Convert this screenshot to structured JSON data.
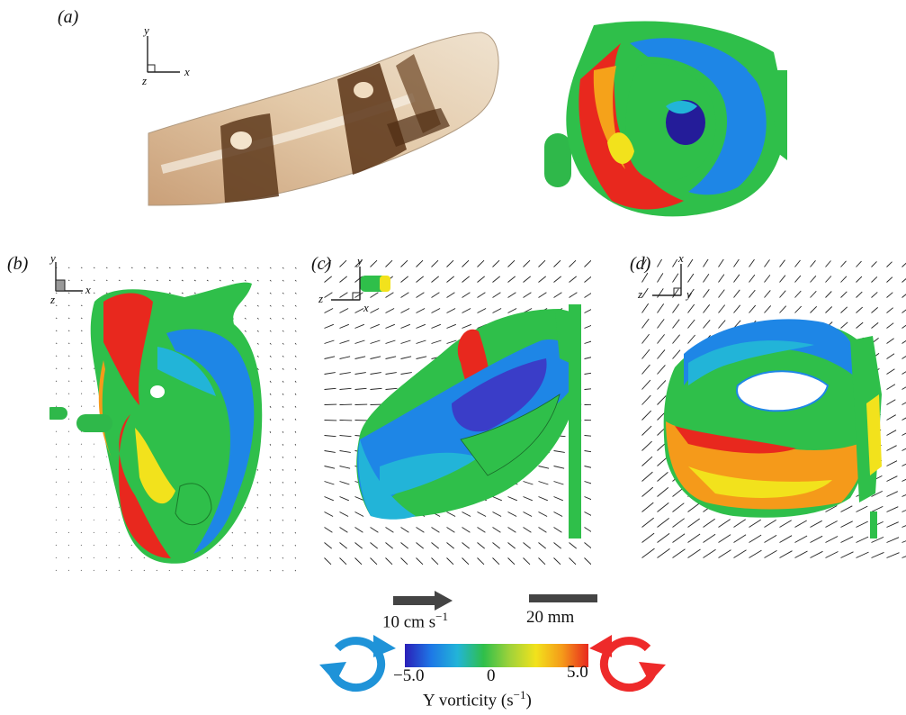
{
  "panels": {
    "a": {
      "label": "(a)",
      "axes": {
        "up": "y",
        "right": "x",
        "out": "z"
      }
    },
    "b": {
      "label": "(b)",
      "axes": {
        "up": "y",
        "right": "x",
        "out": "z"
      }
    },
    "c": {
      "label": "(c)",
      "axes": {
        "up": "y",
        "left": "z",
        "right": "x"
      }
    },
    "d": {
      "label": "(d)",
      "axes": {
        "up": "x",
        "left": "z",
        "right": "y"
      }
    }
  },
  "scale": {
    "velocity_label": "10 cm s",
    "velocity_exp": "−1",
    "length_label": "20 mm"
  },
  "colorbar": {
    "min_label": "−5.0",
    "mid_label": "0",
    "max_label": "5.0",
    "title": "Y vorticity (s",
    "title_exp": "−1",
    "title_close": ")",
    "min": -5.0,
    "max": 5.0,
    "colors": [
      "#2a1fb8",
      "#1e78e6",
      "#22b4d8",
      "#2fbf4a",
      "#9fd23a",
      "#f2e21c",
      "#f59a1a",
      "#e8281e"
    ]
  },
  "rotation_icons": {
    "negative_color": "#1f93d8",
    "positive_color": "#ee2a2a"
  }
}
